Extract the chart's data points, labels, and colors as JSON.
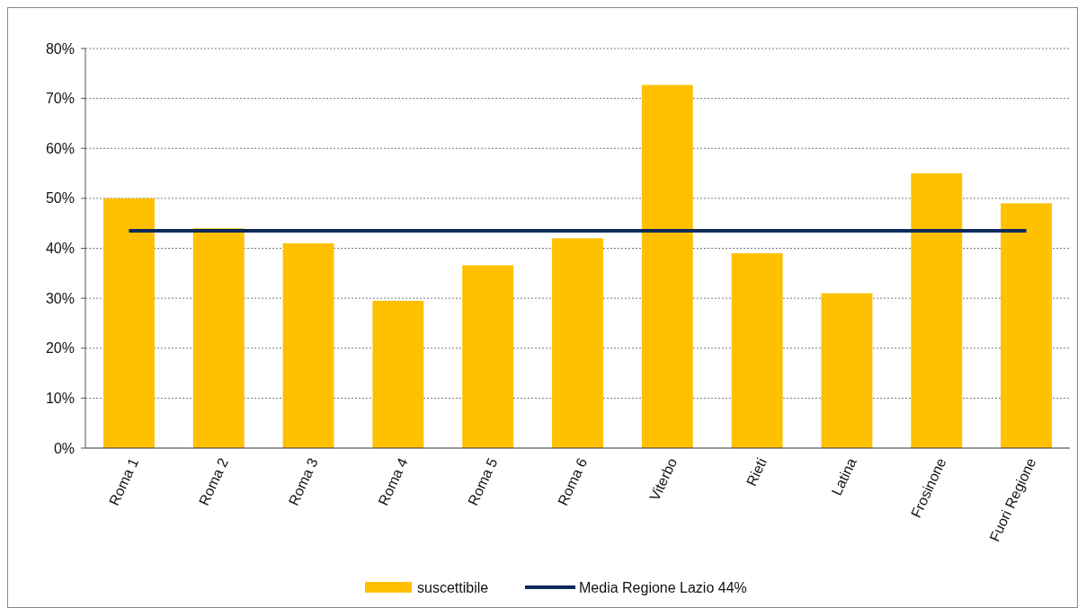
{
  "chart_data": {
    "type": "bar",
    "categories": [
      "Roma 1",
      "Roma 2",
      "Roma 3",
      "Roma 4",
      "Roma 5",
      "Roma 6",
      "Viterbo",
      "Rieti",
      "Latina",
      "Frosinone",
      "Fuori Regione"
    ],
    "series": [
      {
        "name": "suscettibile",
        "color": "#ffc000",
        "values": [
          50,
          44,
          41,
          29.5,
          36.6,
          42,
          72.7,
          39,
          31,
          55,
          49
        ]
      },
      {
        "name": "Media Regione Lazio 44%",
        "type": "line",
        "color": "#0d2a5c",
        "values": [
          43.5,
          43.5,
          43.5,
          43.5,
          43.5,
          43.5,
          43.5,
          43.5,
          43.5,
          43.5,
          43.5
        ]
      }
    ],
    "ylim": [
      0,
      80
    ],
    "yticks": [
      {
        "value": 0,
        "label": "0%"
      },
      {
        "value": 10,
        "label": "10%"
      },
      {
        "value": 20,
        "label": "20%"
      },
      {
        "value": 30,
        "label": "30%"
      },
      {
        "value": 40,
        "label": "40%"
      },
      {
        "value": 50,
        "label": "50%"
      },
      {
        "value": 60,
        "label": "60%"
      },
      {
        "value": 70,
        "label": "70%"
      },
      {
        "value": 80,
        "label": "80%"
      }
    ],
    "grid": "y",
    "legend": "bottom",
    "marker": "none",
    "line_style": "solid"
  }
}
